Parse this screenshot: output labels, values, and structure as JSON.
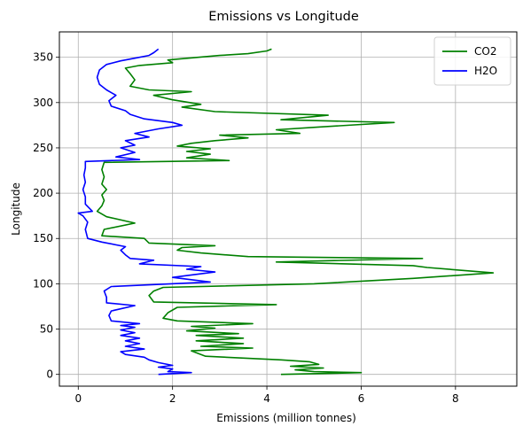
{
  "chart_data": {
    "type": "line",
    "title": "Emissions vs Longitude",
    "xlabel": "Emissions (million tonnes)",
    "ylabel": "Longitude",
    "xlim": [
      -0.4,
      9.3
    ],
    "ylim": [
      -13,
      378
    ],
    "xticks": [
      0,
      2,
      4,
      6,
      8
    ],
    "yticks": [
      0,
      50,
      100,
      150,
      200,
      250,
      300,
      350
    ],
    "grid": true,
    "legend_position": "top-right",
    "series": [
      {
        "name": "CO2",
        "color": "#008000",
        "points": [
          [
            4.3,
            0
          ],
          [
            6.0,
            2
          ],
          [
            5.0,
            3
          ],
          [
            4.6,
            5
          ],
          [
            5.2,
            7
          ],
          [
            4.5,
            9
          ],
          [
            5.1,
            11
          ],
          [
            4.9,
            14
          ],
          [
            4.3,
            16
          ],
          [
            2.7,
            20
          ],
          [
            2.4,
            26
          ],
          [
            3.7,
            29
          ],
          [
            2.6,
            31
          ],
          [
            3.5,
            34
          ],
          [
            2.5,
            37
          ],
          [
            3.5,
            40
          ],
          [
            2.5,
            43
          ],
          [
            3.4,
            45
          ],
          [
            2.3,
            48
          ],
          [
            2.9,
            51
          ],
          [
            2.4,
            53
          ],
          [
            3.7,
            56
          ],
          [
            2.1,
            59
          ],
          [
            1.8,
            62
          ],
          [
            1.9,
            68
          ],
          [
            2.1,
            74
          ],
          [
            4.2,
            77
          ],
          [
            1.6,
            80
          ],
          [
            1.5,
            87
          ],
          [
            1.6,
            92
          ],
          [
            1.8,
            96
          ],
          [
            5.0,
            100
          ],
          [
            7.1,
            106
          ],
          [
            8.8,
            112
          ],
          [
            7.4,
            118
          ],
          [
            7.1,
            120
          ],
          [
            4.2,
            124
          ],
          [
            7.3,
            128
          ],
          [
            3.6,
            130
          ],
          [
            2.6,
            134
          ],
          [
            2.1,
            137
          ],
          [
            2.2,
            140
          ],
          [
            2.9,
            142
          ],
          [
            1.5,
            145
          ],
          [
            1.4,
            150
          ],
          [
            0.5,
            153
          ],
          [
            0.55,
            160
          ],
          [
            1.2,
            167
          ],
          [
            0.6,
            174
          ],
          [
            0.4,
            180
          ],
          [
            0.5,
            186
          ],
          [
            0.55,
            192
          ],
          [
            0.5,
            198
          ],
          [
            0.6,
            204
          ],
          [
            0.5,
            210
          ],
          [
            0.55,
            218
          ],
          [
            0.5,
            226
          ],
          [
            0.55,
            234
          ],
          [
            3.2,
            236
          ],
          [
            2.3,
            239
          ],
          [
            2.8,
            243
          ],
          [
            2.3,
            246
          ],
          [
            2.8,
            249
          ],
          [
            2.1,
            252
          ],
          [
            2.4,
            255
          ],
          [
            2.9,
            258
          ],
          [
            3.6,
            261
          ],
          [
            3.0,
            264
          ],
          [
            4.7,
            266
          ],
          [
            4.2,
            270
          ],
          [
            5.1,
            273
          ],
          [
            6.7,
            278
          ],
          [
            4.3,
            281
          ],
          [
            5.3,
            286
          ],
          [
            2.9,
            290
          ],
          [
            2.2,
            295
          ],
          [
            2.6,
            298
          ],
          [
            2.0,
            303
          ],
          [
            1.6,
            308
          ],
          [
            2.4,
            312
          ],
          [
            1.5,
            314
          ],
          [
            1.1,
            318
          ],
          [
            1.2,
            325
          ],
          [
            1.1,
            332
          ],
          [
            1.0,
            338
          ],
          [
            1.3,
            341
          ],
          [
            2.0,
            344
          ],
          [
            1.9,
            347
          ],
          [
            3.0,
            352
          ],
          [
            3.6,
            354
          ],
          [
            4.0,
            357
          ],
          [
            4.1,
            359
          ]
        ]
      },
      {
        "name": "H2O",
        "color": "#0000ff",
        "points": [
          [
            1.7,
            0
          ],
          [
            2.4,
            2
          ],
          [
            1.9,
            3
          ],
          [
            2.0,
            6
          ],
          [
            1.7,
            8
          ],
          [
            2.0,
            10
          ],
          [
            1.7,
            13
          ],
          [
            1.5,
            16
          ],
          [
            1.4,
            19
          ],
          [
            1.0,
            22
          ],
          [
            0.9,
            25
          ],
          [
            1.4,
            28
          ],
          [
            1.0,
            31
          ],
          [
            1.3,
            34
          ],
          [
            1.0,
            37
          ],
          [
            1.3,
            40
          ],
          [
            0.9,
            43
          ],
          [
            1.2,
            46
          ],
          [
            0.9,
            49
          ],
          [
            1.2,
            52
          ],
          [
            0.9,
            54
          ],
          [
            1.3,
            56
          ],
          [
            0.7,
            59
          ],
          [
            0.65,
            65
          ],
          [
            0.7,
            70
          ],
          [
            1.2,
            76
          ],
          [
            0.6,
            79
          ],
          [
            0.6,
            85
          ],
          [
            0.55,
            92
          ],
          [
            0.7,
            97
          ],
          [
            2.8,
            102
          ],
          [
            2.0,
            107
          ],
          [
            2.9,
            113
          ],
          [
            2.3,
            116
          ],
          [
            2.6,
            119
          ],
          [
            1.3,
            122
          ],
          [
            1.6,
            126
          ],
          [
            1.1,
            128
          ],
          [
            1.0,
            132
          ],
          [
            0.9,
            137
          ],
          [
            1.0,
            141
          ],
          [
            0.5,
            146
          ],
          [
            0.2,
            150
          ],
          [
            0.15,
            160
          ],
          [
            0.2,
            168
          ],
          [
            0.1,
            175
          ],
          [
            0.0,
            178
          ],
          [
            0.3,
            180
          ],
          [
            0.15,
            188
          ],
          [
            0.15,
            196
          ],
          [
            0.1,
            204
          ],
          [
            0.15,
            212
          ],
          [
            0.12,
            220
          ],
          [
            0.15,
            228
          ],
          [
            0.15,
            235
          ],
          [
            1.3,
            237
          ],
          [
            0.8,
            240
          ],
          [
            1.2,
            245
          ],
          [
            0.9,
            250
          ],
          [
            1.2,
            253
          ],
          [
            1.0,
            258
          ],
          [
            1.5,
            262
          ],
          [
            1.2,
            266
          ],
          [
            1.7,
            271
          ],
          [
            2.2,
            275
          ],
          [
            2.0,
            278
          ],
          [
            1.4,
            282
          ],
          [
            1.1,
            287
          ],
          [
            1.0,
            291
          ],
          [
            0.7,
            296
          ],
          [
            0.65,
            302
          ],
          [
            0.8,
            308
          ],
          [
            0.6,
            314
          ],
          [
            0.45,
            320
          ],
          [
            0.4,
            328
          ],
          [
            0.45,
            336
          ],
          [
            0.6,
            342
          ],
          [
            0.9,
            346
          ],
          [
            1.2,
            349
          ],
          [
            1.5,
            352
          ],
          [
            1.6,
            355
          ],
          [
            1.7,
            359
          ]
        ]
      }
    ]
  }
}
